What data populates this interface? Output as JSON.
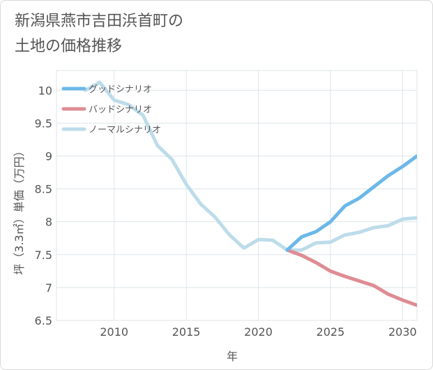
{
  "page": {
    "title_line1": "新潟県燕市吉田浜首町の",
    "title_line2": "土地の価格推移"
  },
  "chart_data": {
    "type": "line",
    "title": "新潟県燕市吉田浜首町の土地の価格推移",
    "xlabel": "年",
    "ylabel": "坪（3.3㎡）単価（万円）",
    "xlim": [
      2006,
      2031
    ],
    "ylim": [
      6.5,
      10.3
    ],
    "xticks": [
      2010,
      2015,
      2020,
      2025,
      2030
    ],
    "yticks": [
      6.5,
      7,
      7.5,
      8,
      8.5,
      9,
      9.5,
      10
    ],
    "ytick_labels": [
      "6.5",
      "7",
      "7.5",
      "8",
      "8.5",
      "9",
      "9.5",
      "10"
    ],
    "grid": true,
    "legend_position": "top-left",
    "series": [
      {
        "name": "グッドシナリオ",
        "color": "#6cb8e8",
        "x": [
          2022,
          2023,
          2024,
          2025,
          2026,
          2027,
          2028,
          2029,
          2030,
          2031
        ],
        "values": [
          7.57,
          7.77,
          7.85,
          8.0,
          8.24,
          8.36,
          8.53,
          8.7,
          8.84,
          9.0
        ]
      },
      {
        "name": "バッドシナリオ",
        "color": "#de8c94",
        "x": [
          2022,
          2023,
          2024,
          2025,
          2026,
          2027,
          2028,
          2029,
          2030,
          2031
        ],
        "values": [
          7.57,
          7.49,
          7.38,
          7.25,
          7.17,
          7.1,
          7.03,
          6.9,
          6.81,
          6.73
        ]
      },
      {
        "name": "ノーマルシナリオ",
        "color": "#bddcea",
        "x": [
          2008,
          2009,
          2010,
          2011,
          2012,
          2013,
          2014,
          2015,
          2016,
          2017,
          2018,
          2019,
          2020,
          2021,
          2022,
          2023,
          2024,
          2025,
          2026,
          2027,
          2028,
          2029,
          2030,
          2031
        ],
        "values": [
          10.0,
          10.12,
          9.85,
          9.78,
          9.62,
          9.16,
          8.95,
          8.57,
          8.27,
          8.07,
          7.8,
          7.6,
          7.73,
          7.72,
          7.57,
          7.57,
          7.68,
          7.69,
          7.8,
          7.84,
          7.91,
          7.94,
          8.04,
          8.06
        ]
      }
    ]
  }
}
